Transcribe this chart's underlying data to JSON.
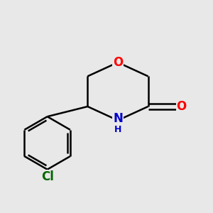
{
  "background_color": "#e8e8e8",
  "bond_color": "#000000",
  "bond_width": 1.8,
  "atom_colors": {
    "O": "#ff0000",
    "N": "#0000cc",
    "Cl": "#006600",
    "C": "#000000"
  },
  "font_size_atoms": 12,
  "font_size_h": 9,
  "fig_bg": "#e8e8e8"
}
